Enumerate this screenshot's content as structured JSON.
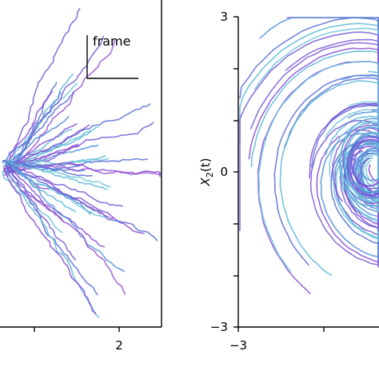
{
  "chart_data": [
    {
      "type": "line",
      "panel": "left",
      "title": "",
      "xlabel": "",
      "ylabel": "",
      "xtick_labels": [
        "2"
      ],
      "xlim": [
        -2.2,
        2.5
      ],
      "ylim": [
        -3,
        3
      ],
      "grid": false,
      "legend": "none",
      "annotation": "frame",
      "description": "random-walk trajectories fanning out from origin",
      "series_colors": [
        "#5b6fd6",
        "#7a5cd4",
        "#5ab8d6",
        "#8a4fd8",
        "#4f8fd8",
        "#9b55d0",
        "#6fc4dd"
      ]
    },
    {
      "type": "line",
      "panel": "right",
      "title": "",
      "xlabel": "",
      "ylabel": "X_2(t)",
      "ylabel_display": "X",
      "ylabel_sub": "2",
      "ylabel_tail": "(t)",
      "xtick_labels": [
        "−3"
      ],
      "ytick_labels": [
        "3",
        "0",
        "−3"
      ],
      "xlim": [
        -3,
        2.5
      ],
      "ylim": [
        -3,
        3
      ],
      "grid": false,
      "legend": "none",
      "description": "spiral trajectories converging to an attractor",
      "series_colors": [
        "#5b6fd6",
        "#7a5cd4",
        "#5ab8d6",
        "#8a4fd8",
        "#4f8fd8",
        "#6fc4dd"
      ]
    }
  ]
}
